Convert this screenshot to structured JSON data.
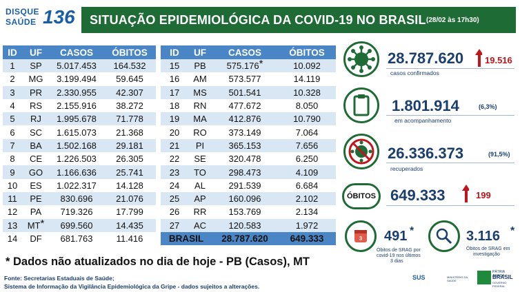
{
  "logo": {
    "line1": "DISQUE",
    "line2": "SAÚDE",
    "number": "136"
  },
  "header": {
    "title": "SITUAÇÃO EPIDEMIOLÓGICA DA COVID-19 NO BRASIL",
    "date": "(28/02 às 17h30)"
  },
  "table_headers": {
    "id": "ID",
    "uf": "UF",
    "casos": "CASOS",
    "obitos": "ÓBITOS"
  },
  "table_left": [
    {
      "id": "1",
      "uf": "SP",
      "casos": "5.017.453",
      "obitos": "164.532",
      "mark": ""
    },
    {
      "id": "2",
      "uf": "MG",
      "casos": "3.199.494",
      "obitos": "59.645",
      "mark": ""
    },
    {
      "id": "3",
      "uf": "PR",
      "casos": "2.330.955",
      "obitos": "42.307",
      "mark": ""
    },
    {
      "id": "4",
      "uf": "RS",
      "casos": "2.155.916",
      "obitos": "38.272",
      "mark": ""
    },
    {
      "id": "5",
      "uf": "RJ",
      "casos": "1.995.678",
      "obitos": "71.778",
      "mark": ""
    },
    {
      "id": "6",
      "uf": "SC",
      "casos": "1.615.073",
      "obitos": "21.368",
      "mark": ""
    },
    {
      "id": "7",
      "uf": "BA",
      "casos": "1.502.168",
      "obitos": "29.181",
      "mark": ""
    },
    {
      "id": "8",
      "uf": "CE",
      "casos": "1.226.503",
      "obitos": "26.305",
      "mark": ""
    },
    {
      "id": "9",
      "uf": "GO",
      "casos": "1.166.636",
      "obitos": "25.741",
      "mark": ""
    },
    {
      "id": "10",
      "uf": "ES",
      "casos": "1.022.317",
      "obitos": "14.128",
      "mark": ""
    },
    {
      "id": "11",
      "uf": "PE",
      "casos": "830.696",
      "obitos": "21.076",
      "mark": ""
    },
    {
      "id": "12",
      "uf": "PA",
      "casos": "719.326",
      "obitos": "17.799",
      "mark": ""
    },
    {
      "id": "13",
      "uf": "MT",
      "casos": "699.560",
      "obitos": "14.435",
      "mark": "*"
    },
    {
      "id": "14",
      "uf": "DF",
      "casos": "681.763",
      "obitos": "11.416",
      "mark": ""
    }
  ],
  "table_right": [
    {
      "id": "15",
      "uf": "PB",
      "casos": "575.176",
      "obitos": "10.092",
      "mark": "*"
    },
    {
      "id": "16",
      "uf": "AM",
      "casos": "573.577",
      "obitos": "14.119",
      "mark": ""
    },
    {
      "id": "17",
      "uf": "MS",
      "casos": "501.541",
      "obitos": "10.328",
      "mark": ""
    },
    {
      "id": "18",
      "uf": "RN",
      "casos": "477.672",
      "obitos": "8.050",
      "mark": ""
    },
    {
      "id": "19",
      "uf": "MA",
      "casos": "412.876",
      "obitos": "10.790",
      "mark": ""
    },
    {
      "id": "20",
      "uf": "RO",
      "casos": "373.149",
      "obitos": "7.064",
      "mark": ""
    },
    {
      "id": "21",
      "uf": "PI",
      "casos": "365.153",
      "obitos": "7.656",
      "mark": ""
    },
    {
      "id": "22",
      "uf": "SE",
      "casos": "320.478",
      "obitos": "6.250",
      "mark": ""
    },
    {
      "id": "23",
      "uf": "TO",
      "casos": "298.473",
      "obitos": "4.109",
      "mark": ""
    },
    {
      "id": "24",
      "uf": "AL",
      "casos": "291.539",
      "obitos": "6.684",
      "mark": ""
    },
    {
      "id": "25",
      "uf": "AP",
      "casos": "160.096",
      "obitos": "2.102",
      "mark": ""
    },
    {
      "id": "26",
      "uf": "RR",
      "casos": "153.769",
      "obitos": "2.134",
      "mark": ""
    },
    {
      "id": "27",
      "uf": "AC",
      "casos": "120.583",
      "obitos": "1.972",
      "mark": ""
    }
  ],
  "total": {
    "label": "BRASIL",
    "casos": "28.787.620",
    "obitos": "649.333"
  },
  "stats": {
    "confirmados": {
      "value": "28.787.620",
      "label": "casos confirmados",
      "delta": "19.516",
      "icon": "virus-icon"
    },
    "acompanhamento": {
      "value": "1.801.914",
      "pct": "(6,3%)",
      "label": "em acompanhamento",
      "icon": "clipboard-icon"
    },
    "recuperados": {
      "value": "26.336.373",
      "pct": "(91,5%)",
      "label": "recuperados",
      "icon": "no-virus-icon"
    },
    "obitos": {
      "box_label": "ÓBITOS",
      "value": "649.333",
      "delta": "199"
    },
    "srag": {
      "value": "491",
      "mark": "*",
      "label1": "Óbitos de SRAG por",
      "label2": "covid-19 nos últimos",
      "label3": "3 dias",
      "icon": "calendar-icon"
    },
    "investigacao": {
      "value": "3.116",
      "mark": "*",
      "label1": "Óbitos de SRAG em",
      "label2": "investigação",
      "icon": "magnifier-icon"
    }
  },
  "note": "* Dados não atualizados no dia de hoje - PB (Casos), MT",
  "source": {
    "line1": "Fonte: Secretarias Estaduais de Saúde;",
    "line2": "Sistema de Informação da Vigilância Epidemiológica da Gripe - dados sujeitos a alterações."
  },
  "footer": {
    "sus": "SUS",
    "ministry": "MINISTÉRIO DA SAÚDE",
    "gov1": "PÁTRIA AMADA",
    "gov2": "BRASIL",
    "gov3": "GOVERNO FEDERAL"
  },
  "colors": {
    "green": "#1f6b35",
    "blue": "#4a86c5",
    "navy": "#1a3e6e",
    "red": "#c0151a"
  }
}
